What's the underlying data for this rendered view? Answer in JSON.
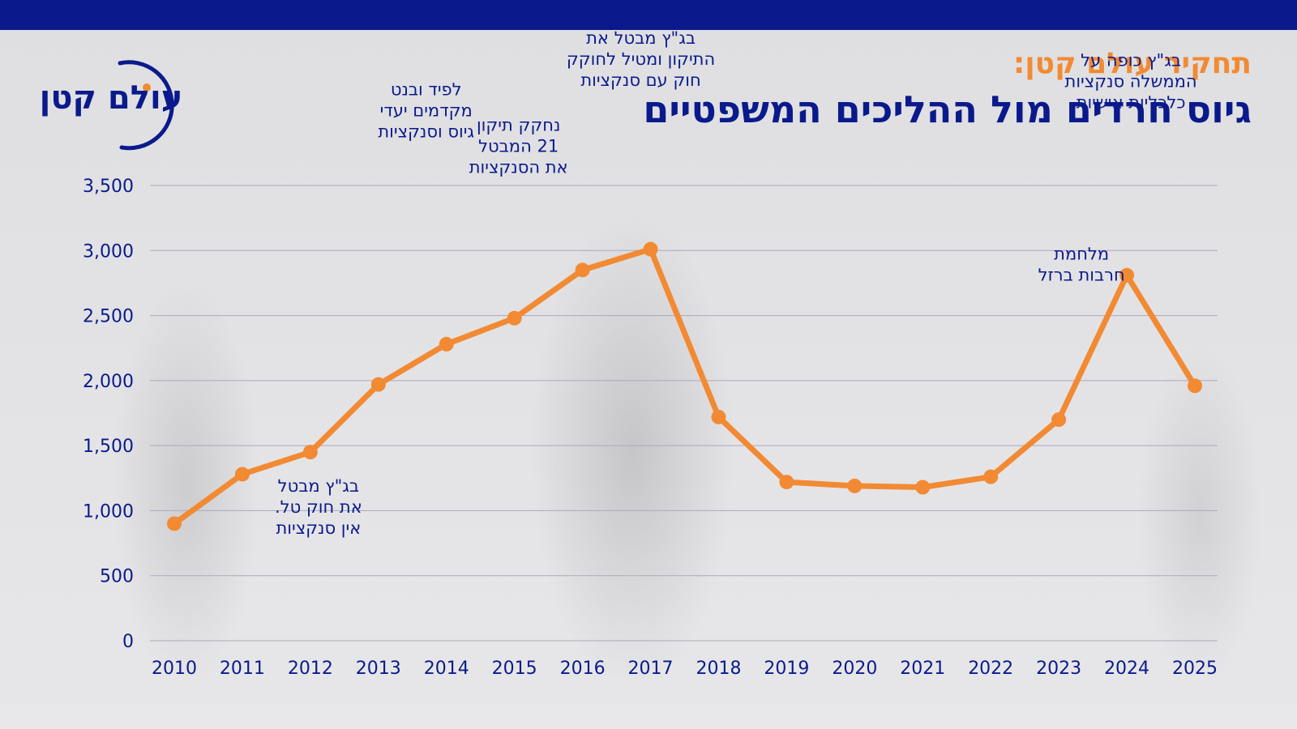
{
  "header": {
    "subtitle": "תחקיר עולם קטן:",
    "title": "גיוס חרדים מול ההליכים המשפטיים",
    "logo_text": "עולם קטן"
  },
  "colors": {
    "brand_blue": "#0a1a8c",
    "accent_orange": "#f28a33",
    "grid": "#a9a9bd"
  },
  "chart_data": {
    "type": "line",
    "title": "",
    "xlabel": "",
    "ylabel": "",
    "x": [
      "2010",
      "2011",
      "2012",
      "2013",
      "2014",
      "2015",
      "2016",
      "2017",
      "2018",
      "2019",
      "2020",
      "2021",
      "2022",
      "2023",
      "2024",
      "2025"
    ],
    "series": [
      {
        "values": [
          900,
          1280,
          1450,
          1970,
          2280,
          2480,
          2850,
          3010,
          1720,
          1220,
          1190,
          1180,
          1260,
          1700,
          2810,
          1960
        ]
      }
    ],
    "ylim": [
      0,
      3500
    ],
    "yticks": [
      0,
      500,
      1000,
      1500,
      2000,
      2500,
      3000,
      3500
    ],
    "ytick_labels": [
      "0",
      "500",
      "1,000",
      "1,500",
      "2,000",
      "2,500",
      "3,000",
      "3,500"
    ],
    "grid": true,
    "legend": "none",
    "annotations": [
      {
        "x": "2012",
        "lines": [
          "בג\"ץ מבטל",
          "את חוק טל.",
          "אין סנקציות"
        ]
      },
      {
        "x": "2014",
        "lines": [
          "לפיד ובנט",
          "מקדמים יעדי",
          "גיוס וסנקציות"
        ]
      },
      {
        "x": "2015",
        "lines": [
          "נחקק תיקון",
          "21 המבטל",
          "את הסנקציות"
        ]
      },
      {
        "x": "2017",
        "lines": [
          "בג\"ץ מבטל את",
          "התיקון ומטיל לחוקק",
          "חוק עם סנקציות"
        ]
      },
      {
        "x": "2023",
        "lines": [
          "מלחמת",
          "חרבות ברזל"
        ]
      },
      {
        "x": "2024",
        "lines": [
          "בג\"ץ כופה על",
          "הממשלה סנקציות",
          "כלכליות אישיות"
        ]
      }
    ]
  }
}
